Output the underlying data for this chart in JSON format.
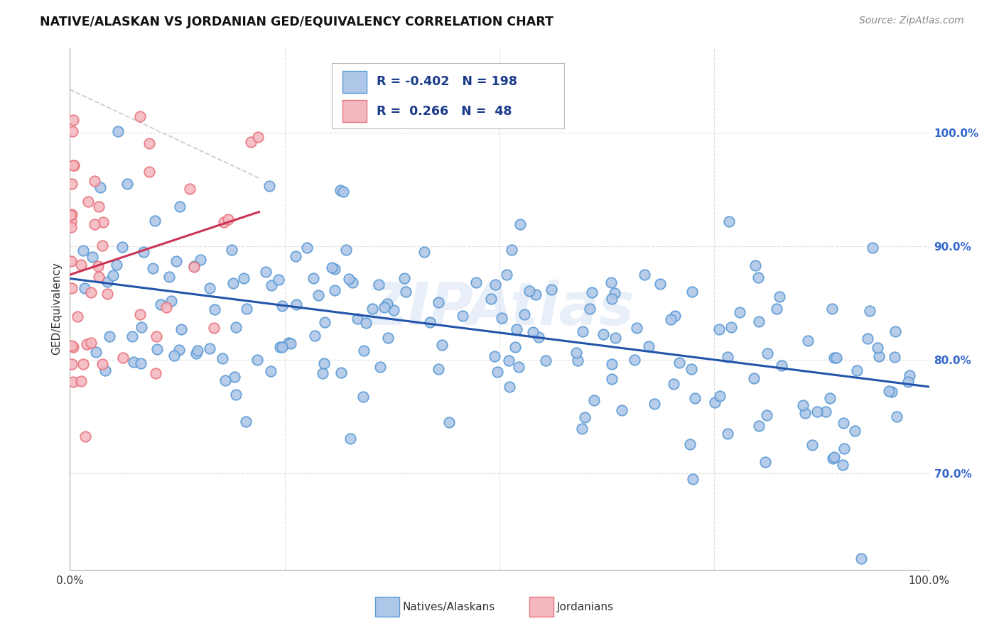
{
  "title": "NATIVE/ALASKAN VS JORDANIAN GED/EQUIVALENCY CORRELATION CHART",
  "source": "Source: ZipAtlas.com",
  "ylabel": "GED/Equivalency",
  "right_yticks": [
    0.7,
    0.8,
    0.9,
    1.0
  ],
  "right_yticklabels": [
    "70.0%",
    "80.0%",
    "90.0%",
    "100.0%"
  ],
  "blue_edge": "#5b9bd5",
  "pink_edge": "#e8747c",
  "blue_fill": "#aec6e8",
  "pink_fill": "#f4b8c1",
  "trend_blue": "#2255aa",
  "trend_pink": "#cc3355",
  "diag_color": "#cccccc",
  "grid_color": "#dddddd",
  "watermark": "ZIPAtlas",
  "watermark_color": "#aec6e8",
  "xmin": 0.0,
  "xmax": 1.0,
  "ymin": 0.615,
  "ymax": 1.075,
  "blue_seed": 42,
  "pink_seed": 123,
  "blue_N": 198,
  "pink_N": 48,
  "R_blue": -0.402,
  "R_pink": 0.266,
  "legend_R_color": "#1a3a8a",
  "legend_N_color": "#1a3a8a",
  "right_tick_color": "#3366cc"
}
